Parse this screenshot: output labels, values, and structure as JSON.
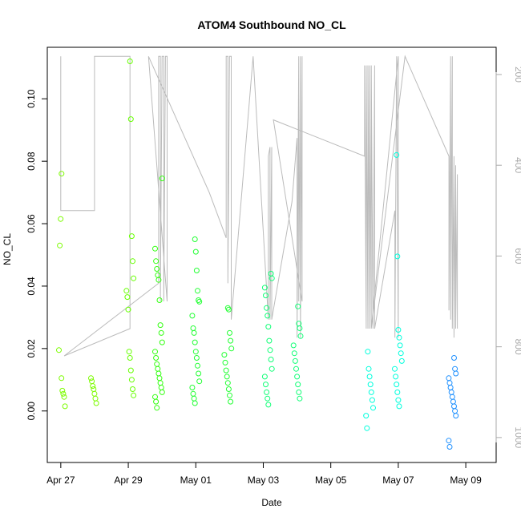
{
  "chart_data": {
    "type": "scatter",
    "title": "ATOM4 Southbound NO_CL",
    "xlabel": "Date",
    "ylabel": "NO_CL",
    "x_ticks": [
      "Apr 27",
      "Apr 29",
      "May 01",
      "May 03",
      "May 05",
      "May 07",
      "May 09"
    ],
    "y_ticks": [
      "0.00",
      "0.02",
      "0.04",
      "0.06",
      "0.08",
      "0.10"
    ],
    "y_tick_values": [
      0,
      0.02,
      0.04,
      0.06,
      0.08,
      0.1
    ],
    "right_axis_ticks": [
      "200",
      "400",
      "600",
      "800",
      "1000"
    ],
    "right_axis_values": [
      200,
      400,
      600,
      800,
      1000
    ],
    "xlim_days": [
      -0.4,
      12.9
    ],
    "ylim": [
      -0.0165,
      0.1165
    ],
    "right_ylim": [
      1055,
      140
    ],
    "colors": {
      "altitude_line": "#bbbbbb",
      "right_axis": "#aaaaaa",
      "frame": "#000000"
    },
    "series": [
      {
        "color": "#7cfc00",
        "points": [
          [
            0.05,
            0.0195
          ],
          [
            0.05,
            0.053
          ],
          [
            0.05,
            0.0615
          ],
          [
            0.05,
            0.076
          ],
          [
            0.02,
            0.0105
          ],
          [
            0.02,
            0.0065
          ],
          [
            0.02,
            0.0055
          ],
          [
            0.02,
            0.0045
          ],
          [
            0.02,
            0.0015
          ],
          [
            1.0,
            0.0105
          ],
          [
            1.0,
            0.0095
          ],
          [
            1.0,
            0.008
          ],
          [
            1.0,
            0.007
          ],
          [
            1.0,
            0.0055
          ],
          [
            1.0,
            0.004
          ],
          [
            1.0,
            0.0025
          ]
        ]
      },
      {
        "color": "#66ff00",
        "points": [
          [
            2.05,
            0.112
          ],
          [
            2.05,
            0.0935
          ],
          [
            2.05,
            0.056
          ],
          [
            2.05,
            0.048
          ],
          [
            2.05,
            0.0425
          ],
          [
            2.05,
            0.0385
          ],
          [
            2.05,
            0.0365
          ],
          [
            2.05,
            0.0325
          ],
          [
            2.05,
            0.019
          ],
          [
            2.05,
            0.017
          ],
          [
            2.05,
            0.013
          ],
          [
            2.05,
            0.01
          ],
          [
            2.05,
            0.007
          ],
          [
            2.05,
            0.005
          ]
        ]
      },
      {
        "color": "#33ff11",
        "points": [
          [
            2.9,
            0.0745
          ],
          [
            2.9,
            0.052
          ],
          [
            2.9,
            0.048
          ],
          [
            2.9,
            0.0455
          ],
          [
            2.9,
            0.0435
          ],
          [
            2.9,
            0.042
          ],
          [
            2.9,
            0.0355
          ],
          [
            2.9,
            0.0275
          ],
          [
            2.9,
            0.025
          ],
          [
            2.9,
            0.022
          ],
          [
            2.9,
            0.019
          ],
          [
            2.9,
            0.017
          ],
          [
            2.9,
            0.015
          ],
          [
            2.9,
            0.0135
          ],
          [
            2.9,
            0.012
          ],
          [
            2.9,
            0.0105
          ],
          [
            2.9,
            0.009
          ],
          [
            2.9,
            0.0075
          ],
          [
            2.9,
            0.006
          ],
          [
            2.9,
            0.0045
          ],
          [
            2.9,
            0.003
          ],
          [
            2.9,
            0.001
          ]
        ]
      },
      {
        "color": "#22ff33",
        "points": [
          [
            4.0,
            0.055
          ],
          [
            4.0,
            0.051
          ],
          [
            4.0,
            0.045
          ],
          [
            4.0,
            0.0385
          ],
          [
            4.0,
            0.0355
          ],
          [
            4.0,
            0.035
          ],
          [
            4.0,
            0.0305
          ],
          [
            4.0,
            0.0265
          ],
          [
            4.0,
            0.025
          ],
          [
            4.0,
            0.022
          ],
          [
            4.0,
            0.019
          ],
          [
            4.0,
            0.017
          ],
          [
            4.0,
            0.0145
          ],
          [
            4.0,
            0.012
          ],
          [
            4.0,
            0.0095
          ],
          [
            4.0,
            0.0075
          ],
          [
            4.0,
            0.0055
          ],
          [
            4.0,
            0.004
          ],
          [
            4.0,
            0.0025
          ],
          [
            4.95,
            0.033
          ],
          [
            4.95,
            0.0325
          ],
          [
            4.95,
            0.025
          ],
          [
            4.95,
            0.0225
          ],
          [
            4.95,
            0.02
          ],
          [
            4.95,
            0.018
          ],
          [
            4.95,
            0.0155
          ],
          [
            4.95,
            0.013
          ],
          [
            4.95,
            0.011
          ],
          [
            4.95,
            0.009
          ],
          [
            4.95,
            0.007
          ],
          [
            4.95,
            0.005
          ],
          [
            4.95,
            0.003
          ]
        ]
      },
      {
        "color": "#11ff77",
        "points": [
          [
            6.15,
            0.044
          ],
          [
            6.15,
            0.0425
          ],
          [
            6.15,
            0.0395
          ],
          [
            6.15,
            0.037
          ],
          [
            6.15,
            0.033
          ],
          [
            6.15,
            0.0305
          ],
          [
            6.15,
            0.027
          ],
          [
            6.15,
            0.0225
          ],
          [
            6.15,
            0.0195
          ],
          [
            6.15,
            0.0165
          ],
          [
            6.15,
            0.0135
          ],
          [
            6.15,
            0.011
          ],
          [
            6.15,
            0.0085
          ],
          [
            6.15,
            0.006
          ],
          [
            6.15,
            0.004
          ],
          [
            6.15,
            0.002
          ],
          [
            7.0,
            0.0335
          ],
          [
            7.0,
            0.028
          ],
          [
            7.0,
            0.0265
          ],
          [
            7.0,
            0.024
          ],
          [
            7.0,
            0.021
          ],
          [
            7.0,
            0.0185
          ],
          [
            7.0,
            0.016
          ],
          [
            7.0,
            0.0135
          ],
          [
            7.0,
            0.011
          ],
          [
            7.0,
            0.0085
          ],
          [
            7.0,
            0.006
          ],
          [
            7.0,
            0.004
          ]
        ]
      },
      {
        "color": "#00ffdd",
        "points": [
          [
            9.15,
            0.019
          ],
          [
            9.15,
            0.0135
          ],
          [
            9.15,
            0.011
          ],
          [
            9.15,
            0.0085
          ],
          [
            9.15,
            0.006
          ],
          [
            9.15,
            0.0035
          ],
          [
            9.15,
            0.001
          ],
          [
            9.15,
            -0.0015
          ],
          [
            9.15,
            -0.0055
          ],
          [
            10.0,
            0.082
          ],
          [
            10.0,
            0.0495
          ],
          [
            10.0,
            0.026
          ],
          [
            10.0,
            0.0235
          ],
          [
            10.0,
            0.021
          ],
          [
            10.0,
            0.0185
          ],
          [
            10.0,
            0.016
          ],
          [
            10.0,
            0.0135
          ],
          [
            10.0,
            0.011
          ],
          [
            10.0,
            0.0085
          ],
          [
            10.0,
            0.006
          ],
          [
            10.0,
            0.0035
          ],
          [
            10.0,
            0.0015
          ]
        ]
      },
      {
        "color": "#1e90ff",
        "points": [
          [
            11.6,
            0.017
          ],
          [
            11.6,
            0.0135
          ],
          [
            11.6,
            0.012
          ],
          [
            11.6,
            0.0105
          ],
          [
            11.6,
            0.009
          ],
          [
            11.6,
            0.0075
          ],
          [
            11.6,
            0.006
          ],
          [
            11.6,
            0.0045
          ],
          [
            11.6,
            0.003
          ],
          [
            11.6,
            0.0015
          ],
          [
            11.6,
            0.0
          ],
          [
            11.6,
            -0.0015
          ],
          [
            11.6,
            -0.0095
          ],
          [
            11.6,
            -0.0115
          ]
        ]
      }
    ],
    "altitude": [
      [
        0.0,
        160
      ],
      [
        0.0,
        500
      ],
      [
        1.0,
        500
      ],
      [
        1.0,
        160
      ],
      [
        2.05,
        160
      ],
      [
        2.05,
        700
      ],
      [
        2.05,
        760
      ],
      [
        0.1,
        820
      ],
      [
        2.9,
        660
      ],
      [
        2.9,
        160
      ],
      [
        2.95,
        160
      ],
      [
        2.95,
        700
      ],
      [
        3.0,
        160
      ],
      [
        3.05,
        160
      ],
      [
        3.05,
        700
      ],
      [
        3.1,
        160
      ],
      [
        3.15,
        160
      ],
      [
        3.15,
        700
      ],
      [
        2.6,
        160
      ],
      [
        4.4,
        460
      ],
      [
        4.9,
        560
      ],
      [
        4.9,
        160
      ],
      [
        4.95,
        160
      ],
      [
        4.95,
        660
      ],
      [
        5.0,
        160
      ],
      [
        5.05,
        160
      ],
      [
        5.05,
        740
      ],
      [
        5.7,
        160
      ],
      [
        6.15,
        740
      ],
      [
        6.15,
        380
      ],
      [
        6.2,
        360
      ],
      [
        6.2,
        740
      ],
      [
        6.25,
        360
      ],
      [
        6.25,
        740
      ],
      [
        6.85,
        480
      ],
      [
        7.0,
        340
      ],
      [
        7.0,
        780
      ],
      [
        7.05,
        160
      ],
      [
        7.05,
        700
      ],
      [
        7.1,
        160
      ],
      [
        7.1,
        780
      ],
      [
        7.15,
        160
      ],
      [
        7.15,
        700
      ],
      [
        6.3,
        300
      ],
      [
        9.0,
        380
      ],
      [
        9.0,
        180
      ],
      [
        9.05,
        760
      ],
      [
        9.05,
        180
      ],
      [
        9.1,
        760
      ],
      [
        9.1,
        180
      ],
      [
        9.15,
        760
      ],
      [
        9.15,
        180
      ],
      [
        9.2,
        760
      ],
      [
        9.2,
        180
      ],
      [
        9.25,
        760
      ],
      [
        9.3,
        180
      ],
      [
        9.3,
        760
      ],
      [
        9.9,
        500
      ],
      [
        9.9,
        780
      ],
      [
        9.95,
        160
      ],
      [
        10.0,
        780
      ],
      [
        10.0,
        160
      ],
      [
        9.2,
        760
      ],
      [
        9.2,
        760
      ],
      [
        10.2,
        160
      ],
      [
        11.5,
        380
      ],
      [
        11.5,
        720
      ],
      [
        11.55,
        160
      ],
      [
        11.55,
        740
      ],
      [
        11.6,
        160
      ],
      [
        11.6,
        760
      ],
      [
        11.65,
        380
      ],
      [
        11.65,
        780
      ],
      [
        11.7,
        400
      ],
      [
        11.7,
        760
      ],
      [
        11.75,
        420
      ],
      [
        11.75,
        760
      ]
    ]
  }
}
